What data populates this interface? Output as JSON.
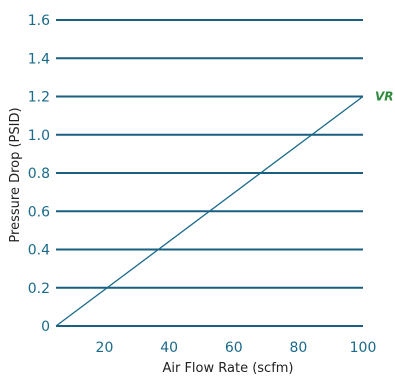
{
  "chart_data": {
    "type": "line",
    "title": "",
    "xlabel": "Air Flow Rate (scfm)",
    "ylabel": "Pressure Drop (PSID)",
    "xlim": [
      5,
      100
    ],
    "ylim": [
      0,
      1.6
    ],
    "x_ticks": [
      20,
      40,
      60,
      80,
      100
    ],
    "y_ticks": [
      0,
      0.2,
      0.4,
      0.6,
      0.8,
      1.0,
      1.2,
      1.4,
      1.6
    ],
    "y_tick_labels": [
      "0",
      "0.2",
      "0.4",
      "0.6",
      "0.8",
      "1.0",
      "1.2",
      "1.4",
      "1.6"
    ],
    "grid": "horizontal",
    "series": [
      {
        "name": "VR",
        "x": [
          5,
          100
        ],
        "y": [
          0,
          1.2
        ]
      }
    ],
    "colors": {
      "gridline": "#1a5f82",
      "series_line": "#1a6a8a",
      "series_label": "#2e8b3e",
      "tick_label": "#1a6a8a",
      "axis_title": "#222222"
    }
  }
}
